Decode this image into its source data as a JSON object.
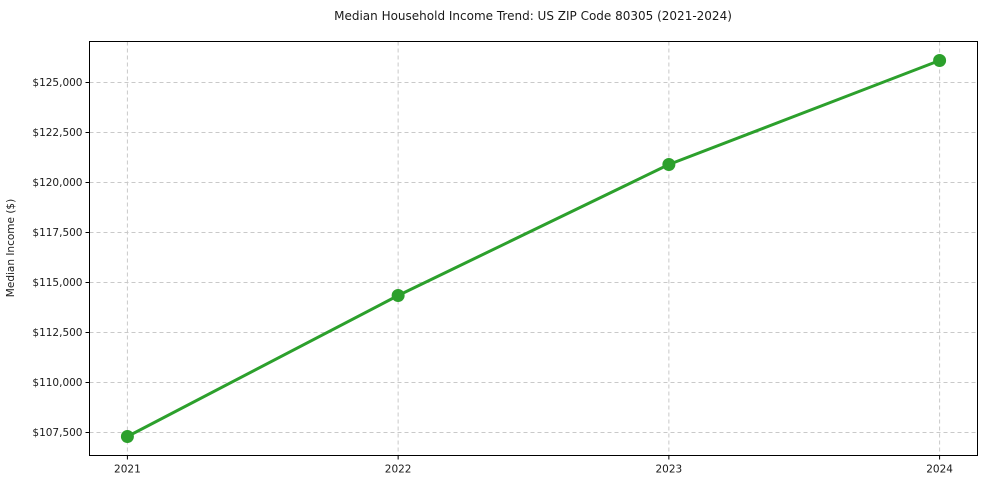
{
  "chart_data": {
    "type": "line",
    "title": "Median Household Income Trend: US ZIP Code 80305 (2021-2024)",
    "xlabel": "",
    "ylabel": "Median Income ($)",
    "x": [
      2021,
      2022,
      2023,
      2024
    ],
    "x_tick_labels": [
      "2021",
      "2022",
      "2023",
      "2024"
    ],
    "values": [
      107300,
      114350,
      120900,
      126100
    ],
    "y_ticks": {
      "values": [
        107500,
        110000,
        112500,
        115000,
        117500,
        120000,
        122500,
        125000
      ],
      "labels": [
        "$107,500",
        "$110,000",
        "$112,500",
        "$115,000",
        "$117,500",
        "$120,000",
        "$122,500",
        "$125,000"
      ]
    },
    "xlim": [
      2020.86,
      2024.14
    ],
    "ylim": [
      106350,
      127050
    ],
    "line_color": "#2ca02c",
    "marker": "circle",
    "marker_radius": 6.5,
    "line_width": 3,
    "grid": {
      "visible": true,
      "style": "dashed",
      "color": "#c9c9c9"
    },
    "legend_position": "none",
    "spine_color": "#000000",
    "text_color": "#1a1a1a",
    "background_color": "#ffffff"
  }
}
